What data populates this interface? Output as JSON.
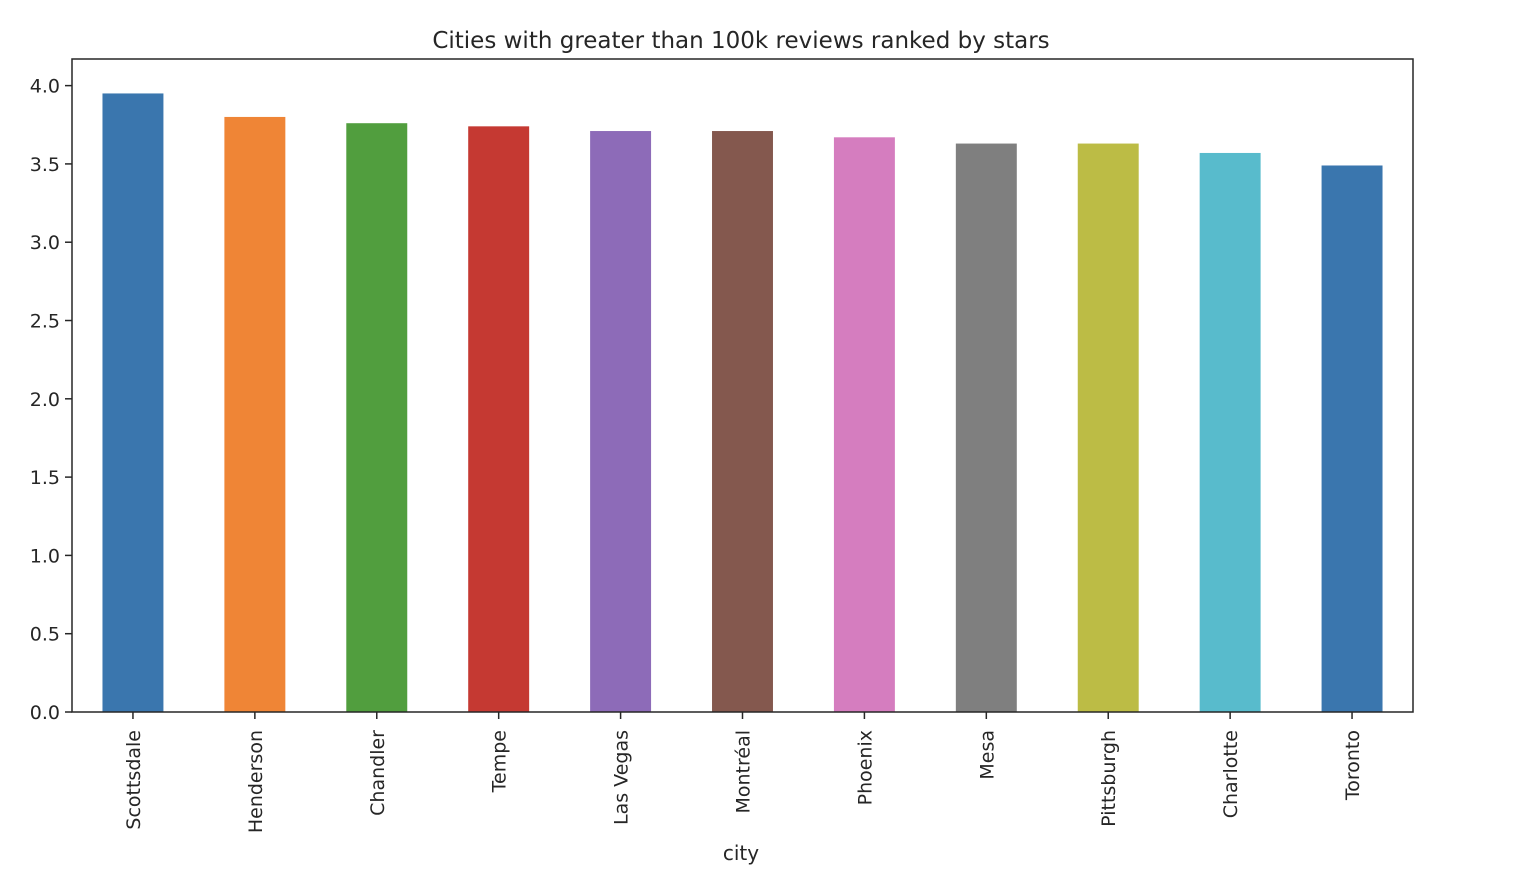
{
  "chart_data": {
    "type": "bar",
    "title": "Cities with greater than 100k reviews ranked by stars",
    "xlabel": "city",
    "ylabel": "",
    "categories": [
      "Scottsdale",
      "Henderson",
      "Chandler",
      "Tempe",
      "Las Vegas",
      "Montréal",
      "Phoenix",
      "Mesa",
      "Pittsburgh",
      "Charlotte",
      "Toronto"
    ],
    "values": [
      3.95,
      3.8,
      3.76,
      3.74,
      3.71,
      3.71,
      3.67,
      3.63,
      3.63,
      3.57,
      3.49
    ],
    "colors": [
      "#3a76ae",
      "#ef8536",
      "#519e3e",
      "#c53932",
      "#8d6bb8",
      "#84584e",
      "#d57dbf",
      "#7f7f7f",
      "#bcbc45",
      "#58bbcc",
      "#3a76ae"
    ],
    "yticks": [
      "0.0",
      "0.5",
      "1.0",
      "1.5",
      "2.0",
      "2.5",
      "3.0",
      "3.5",
      "4.0"
    ],
    "ylim": [
      0,
      4.17
    ],
    "grid": false,
    "legend": "none"
  }
}
